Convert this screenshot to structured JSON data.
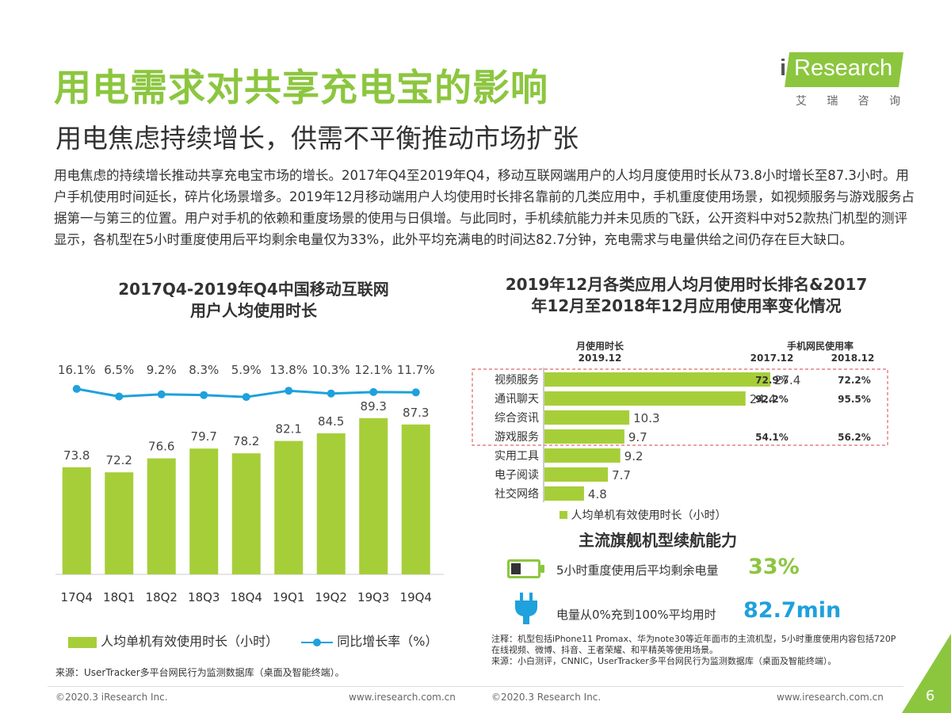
{
  "header": {
    "title": "用电需求对共享充电宝的影响",
    "subtitle": "用电焦虑持续增长，供需不平衡推动市场扩张",
    "logo_text": "Research",
    "logo_i": "i",
    "logo_cn": [
      "艾",
      "瑞",
      "咨",
      "询"
    ]
  },
  "paragraph": "用电焦虑的持续增长推动共享充电宝市场的增长。2017年Q4至2019年Q4，移动互联网端用户的人均月度使用时长从73.8小时增长至87.3小时。用户手机使用时间延长，碎片化场景增多。2019年12月移动端用户人均使用时长排名靠前的几类应用中，手机重度使用场景，如视频服务与游戏服务占据第一与第三的位置。用户对手机的依赖和重度场景的使用与日俱增。与此同时，手机续航能力并未见质的飞跃，公开资料中对52款热门机型的测评显示，各机型在5小时重度使用后平均剩余电量仅为33%，此外平均充满电的时间达82.7分钟，充电需求与电量供给之间仍存在巨大缺口。",
  "chart_data": [
    {
      "type": "bar",
      "title": "2017Q4-2019年Q4中国移动互联网用户人均使用时长",
      "title_lines": [
        "2017Q4-2019年Q4中国移动互联网",
        "用户人均使用时长"
      ],
      "categories": [
        "17Q4",
        "18Q1",
        "18Q2",
        "18Q3",
        "18Q4",
        "19Q1",
        "19Q2",
        "19Q3",
        "19Q4"
      ],
      "series": [
        {
          "name": "人均单机有效使用时长（小时）",
          "type": "bar",
          "values": [
            73.8,
            72.2,
            76.6,
            79.7,
            78.2,
            82.1,
            84.5,
            89.3,
            87.3
          ],
          "color": "#a6ce39"
        },
        {
          "name": "同比增长率（%）",
          "type": "line",
          "values": [
            16.1,
            6.5,
            9.2,
            8.3,
            5.9,
            13.8,
            10.3,
            12.1,
            11.7
          ],
          "labels": [
            "16.1%",
            "6.5%",
            "9.2%",
            "8.3%",
            "5.9%",
            "13.8%",
            "10.3%",
            "12.1%",
            "11.7%"
          ],
          "color": "#1ea1dc"
        }
      ]
    },
    {
      "type": "bar",
      "orientation": "horizontal",
      "title": "2019年12月各类应用人均月使用时长排名&2017年12月至2018年12月应用使用率变化情况",
      "title_lines": [
        "2019年12月各类应用人均月使用时长排名&2017",
        "年12月至2018年12月应用使用率变化情况"
      ],
      "column_header_left": [
        "月使用时长",
        "2019.12"
      ],
      "column_header_right": "手机网民使用率",
      "years": [
        "2017.12",
        "2018.12"
      ],
      "categories": [
        "视频服务",
        "通讯聊天",
        "综合资讯",
        "游戏服务",
        "实用工具",
        "电子阅读",
        "社交网络"
      ],
      "values": [
        27.4,
        24.4,
        10.3,
        9.7,
        9.2,
        7.7,
        4.8
      ],
      "usage_2017": [
        "72.9%",
        "92.2%",
        "",
        "54.1%",
        "",
        "",
        ""
      ],
      "usage_2018": [
        "72.2%",
        "95.5%",
        "",
        "56.2%",
        "",
        "",
        ""
      ],
      "legend": "人均单机有效使用时长（小时）",
      "color": "#a6ce39"
    }
  ],
  "battery": {
    "heading": "主流旗舰机型续航能力",
    "battery_text": "5小时重度使用后平均剩余电量",
    "battery_value": "33%",
    "battery_level": 0.33,
    "charge_text": "电量从0%充到100%平均用时",
    "charge_value": "82.7min"
  },
  "notes": {
    "note": "注释：机型包括iPhone11 Promax、华为note30等近年面市的主流机型，5小时重度使用内容包括720P在线视频、微博、抖音、王者荣耀、和平精英等使用场景。",
    "source_right": "来源：小白测评，CNNIC，UserTracker多平台网民行为监测数据库（桌面及智能终端）。",
    "source_left": "来源：UserTracker多平台网民行为监测数据库（桌面及智能终端）。"
  },
  "footer": {
    "left_copyright": "©2020.3 iResearch Inc.",
    "left_url": "www.iresearch.com.cn",
    "right_copyright": "©2020.3 Research Inc.",
    "right_url": "www.iresearch.com.cn",
    "page_number": "6"
  },
  "colors": {
    "accent": "#8cc63f",
    "bar": "#a6ce39",
    "line": "#1ea1dc",
    "highlight_border": "#e06666"
  }
}
